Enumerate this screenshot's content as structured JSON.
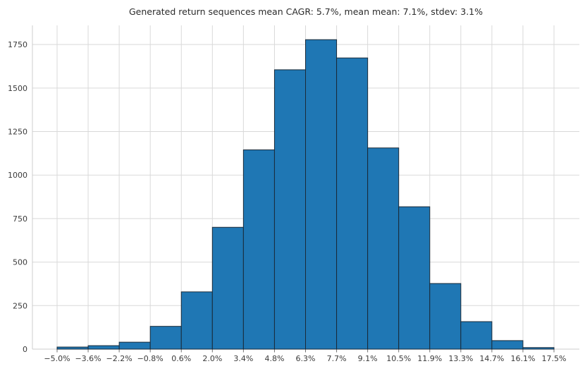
{
  "chart_data": {
    "type": "bar",
    "kind": "histogram",
    "title": "Generated return sequences mean CAGR: 5.7%, mean mean: 7.1%, stdev: 3.1%",
    "xlabel": "",
    "ylabel": "",
    "categories": [
      "−5.0%",
      "−3.6%",
      "−2.2%",
      "−0.8%",
      "0.6%",
      "2.0%",
      "3.4%",
      "4.8%",
      "6.3%",
      "7.7%",
      "9.1%",
      "10.5%",
      "11.9%",
      "13.3%",
      "14.7%",
      "16.1%",
      "17.5%"
    ],
    "values": [
      12,
      20,
      40,
      131,
      329,
      700,
      1145,
      1605,
      1778,
      1673,
      1156,
      818,
      377,
      158,
      49,
      9
    ],
    "yticks": [
      0,
      250,
      500,
      750,
      1000,
      1250,
      1500,
      1750
    ],
    "ylim": [
      0,
      1860
    ],
    "grid": true,
    "legend": false,
    "colors": {
      "bar_fill": "#1f77b4",
      "bar_edge": "#1a2a38",
      "grid": "#d9d9d9",
      "spine": "#cccccc",
      "tick_mark": "#707070",
      "tick_text": "#3a3a3a",
      "title_text": "#2b2b2b",
      "background": "#ffffff"
    }
  }
}
